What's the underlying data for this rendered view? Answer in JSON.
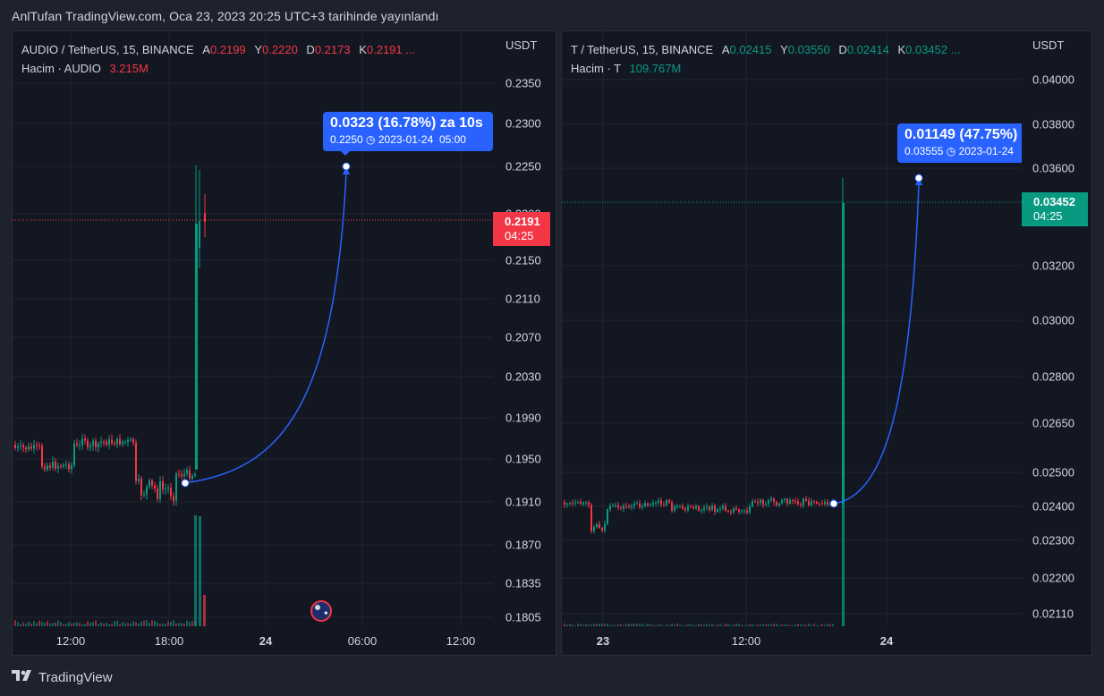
{
  "header": {
    "title": "AnlTufan TradingView.com, Oca 23, 2023 20:25 UTC+3 tarihinde yayınlandı"
  },
  "footer": {
    "brand": "TradingView"
  },
  "colors": {
    "up": "#089981",
    "down": "#f23645",
    "accent": "#2962ff",
    "background": "#131722"
  },
  "charts": [
    {
      "symbol": "AUDIO / TetherUS, 15, BINANCE",
      "ohlc": {
        "a_label": "A",
        "a": "0.2199",
        "y_label": "Y",
        "y": "0.2220",
        "d_label": "D",
        "d": "0.2173",
        "k_label": "K",
        "k": "0.2191 ..."
      },
      "volume": {
        "label": "Hacim · AUDIO",
        "value": "3.215M"
      },
      "unit": "USDT",
      "y_ticks": [
        "0.2350",
        "0.2300",
        "0.2250",
        "0.2200",
        "0.2150",
        "0.2110",
        "0.2070",
        "0.2030",
        "0.1990",
        "0.1950",
        "0.1910",
        "0.1870",
        "0.1835",
        "0.1805"
      ],
      "x_ticks": [
        {
          "t": "12:00",
          "bold": false
        },
        {
          "t": "18:00",
          "bold": false
        },
        {
          "t": "24",
          "bold": true
        },
        {
          "t": "06:00",
          "bold": false
        },
        {
          "t": "12:00",
          "bold": false
        }
      ],
      "last_price": {
        "price": "0.2191",
        "countdown": "04:25",
        "color": "down"
      },
      "projection": {
        "change": "0.0323 (16.78%) za 10s",
        "target": "0.2250",
        "date": "2023-01-24",
        "time": "05:00"
      },
      "event_icon": "australia-flag-icon"
    },
    {
      "symbol": "T / TetherUS, 15, BINANCE",
      "ohlc": {
        "a_label": "A",
        "a": "0.02415",
        "y_label": "Y",
        "y": "0.03550",
        "d_label": "D",
        "d": "0.02414",
        "k_label": "K",
        "k": "0.03452 ..."
      },
      "volume": {
        "label": "Hacim · T",
        "value": "109.767M"
      },
      "unit": "USDT",
      "y_ticks": [
        "0.04000",
        "0.03800",
        "0.03600",
        "0.03200",
        "0.03000",
        "0.02800",
        "0.02650",
        "0.02500",
        "0.02400",
        "0.02300",
        "0.02200",
        "0.02110"
      ],
      "x_ticks": [
        {
          "t": "23",
          "bold": true
        },
        {
          "t": "12:00",
          "bold": false
        },
        {
          "t": "24",
          "bold": true
        }
      ],
      "last_price": {
        "price": "0.03452",
        "countdown": "04:25",
        "color": "up"
      },
      "projection": {
        "change": "0.01149 (47.75%)",
        "target": "0.03555",
        "date": "2023-01-24"
      }
    }
  ]
}
